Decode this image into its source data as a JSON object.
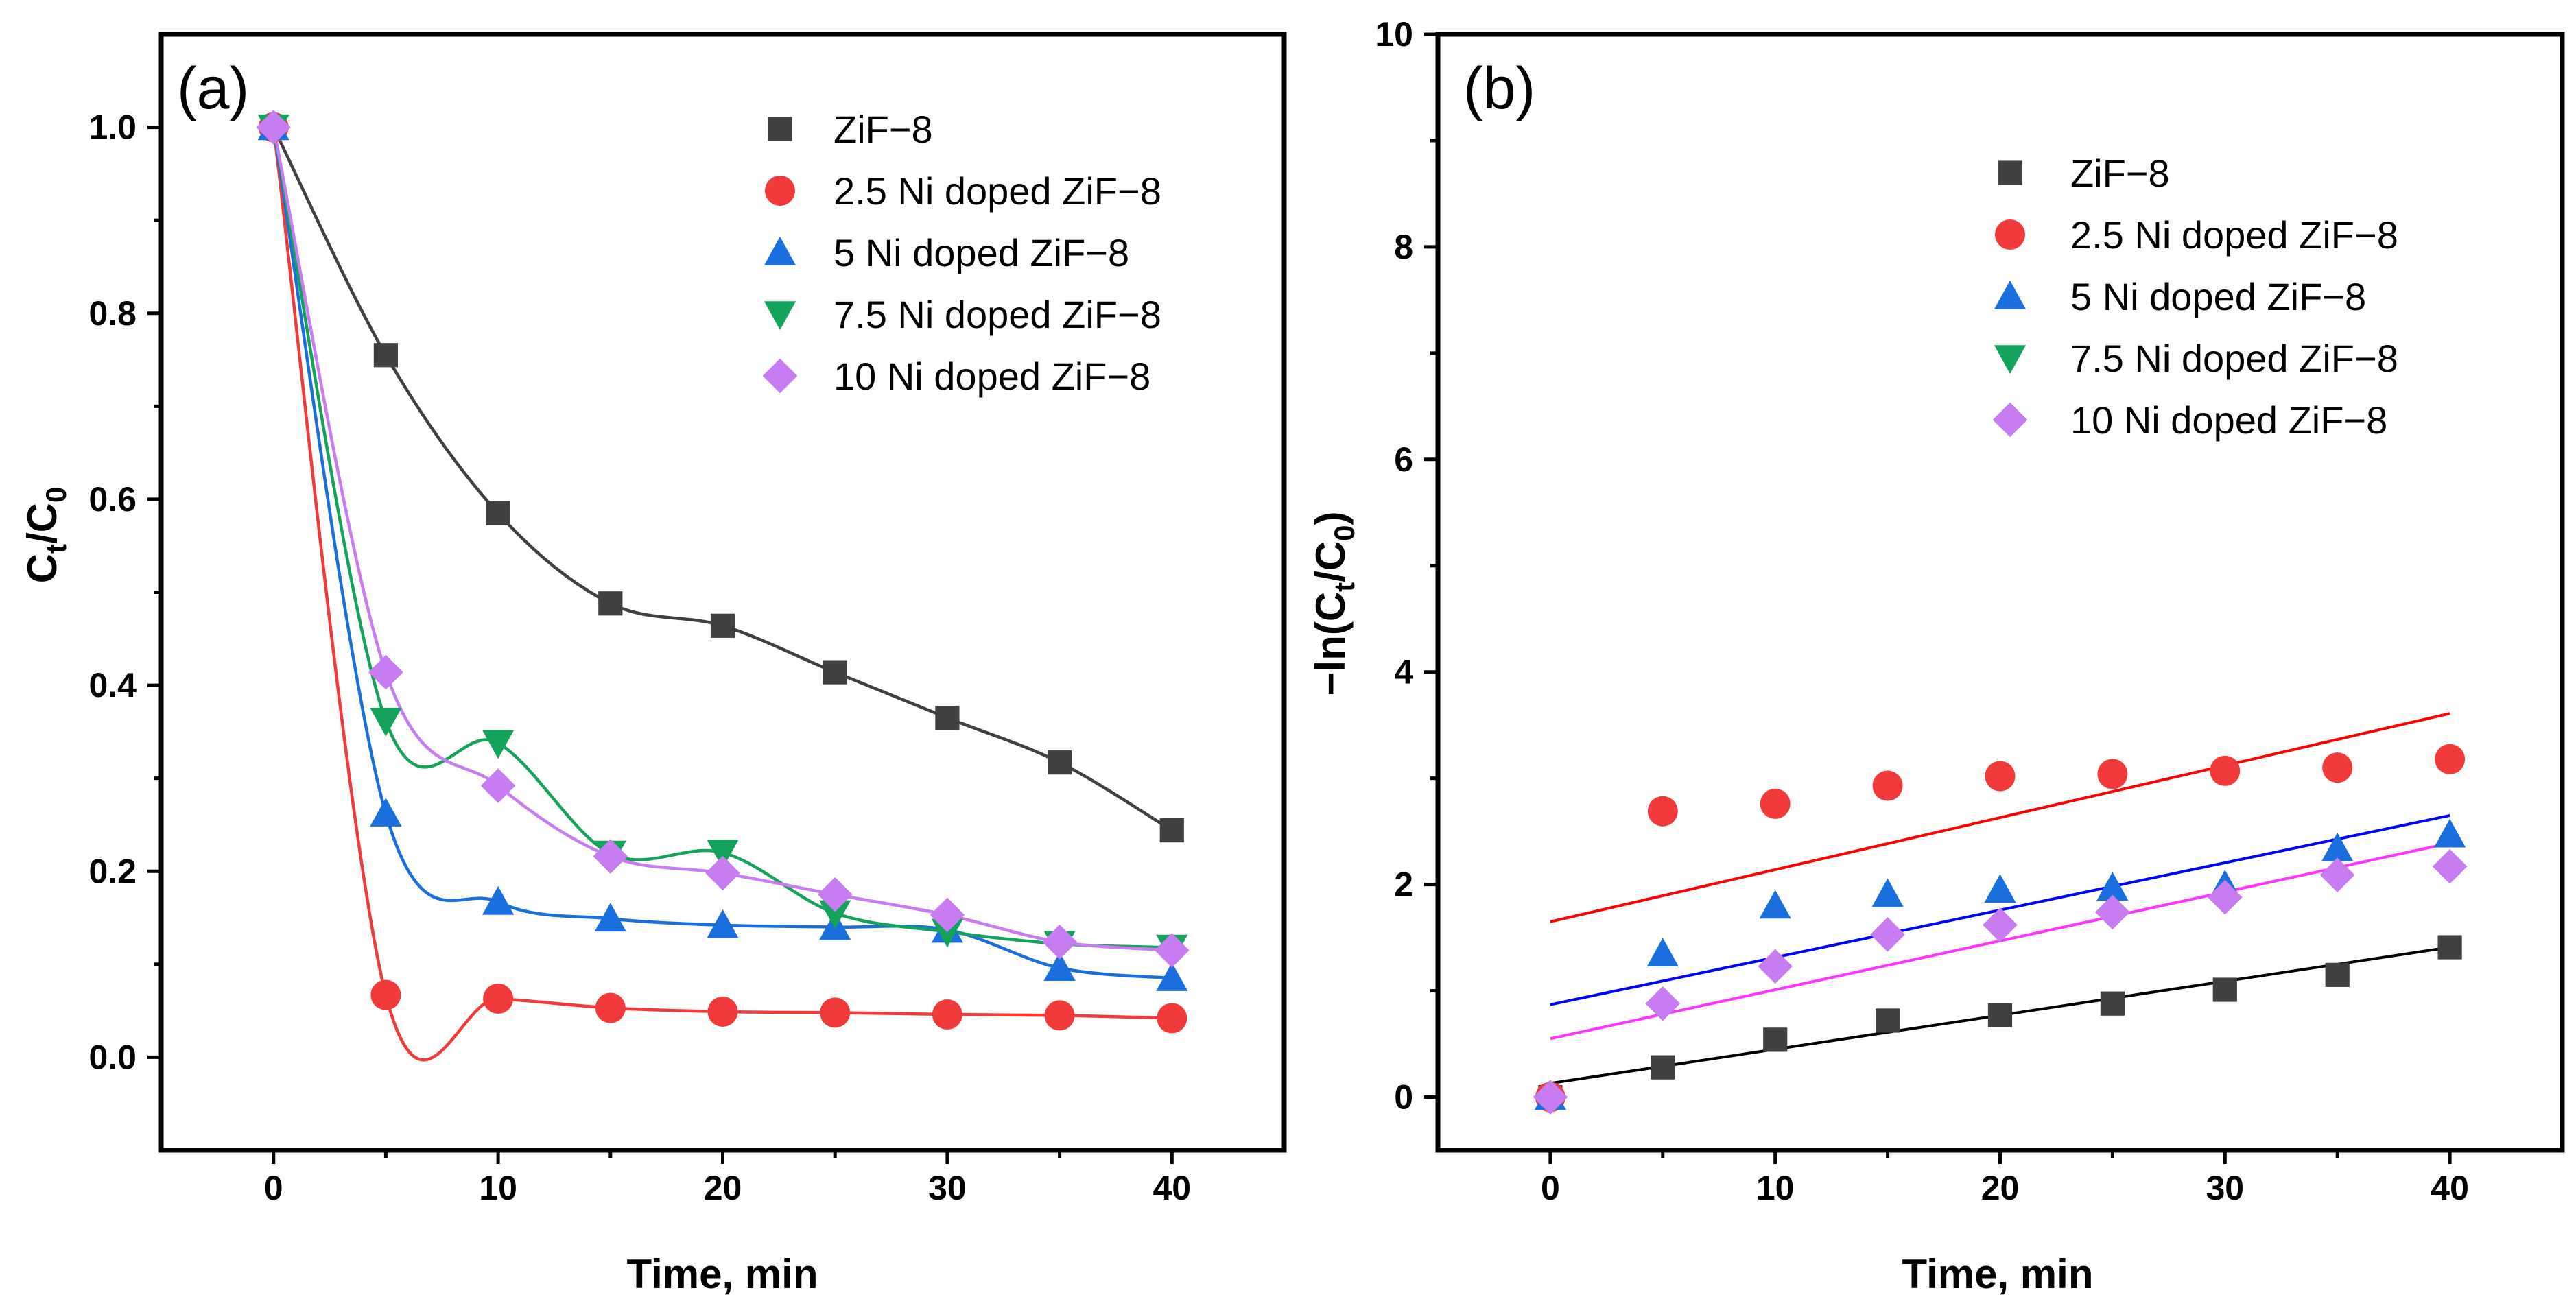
{
  "series_meta": [
    {
      "name": "ZiF−8",
      "color": "#404040",
      "fit_color": "#000000",
      "marker": "square"
    },
    {
      "name": "2.5 Ni doped ZiF−8",
      "color": "#f23a3a",
      "fit_color": "#ff0000",
      "marker": "circle"
    },
    {
      "name": "5 Ni doped ZiF−8",
      "color": "#1a6fdf",
      "fit_color": "#0000ff",
      "marker": "triangle-up"
    },
    {
      "name": "7.5 Ni doped ZiF−8",
      "color": "#14a35a",
      "fit_color": "#14a35a",
      "marker": "triangle-down"
    },
    {
      "name": "10 Ni doped ZiF−8",
      "color": "#c77cf2",
      "fit_color": "#ff33ff",
      "marker": "diamond"
    }
  ],
  "chart_data": [
    {
      "type": "line",
      "panel_label": "(a)",
      "title": "",
      "xlabel": "Time, min",
      "ylabel_main": "C",
      "ylabel_sub1": "t",
      "ylabel_mid": "/C",
      "ylabel_sub2": "0",
      "xlim": [
        -5,
        45
      ],
      "ylim": [
        -0.1,
        1.1
      ],
      "xticks": [
        0,
        10,
        20,
        30,
        40
      ],
      "xtick_labels": [
        "0",
        "10",
        "20",
        "30",
        "40"
      ],
      "yticks": [
        0.0,
        0.2,
        0.4,
        0.6,
        0.8,
        1.0
      ],
      "ytick_labels": [
        "0.0",
        "0.2",
        "0.4",
        "0.6",
        "0.8",
        "1.0"
      ],
      "legend_position": "top-right",
      "grid": false,
      "x": [
        0,
        5,
        10,
        15,
        20,
        25,
        30,
        35,
        40
      ],
      "series": [
        {
          "name": "ZiF−8",
          "values": [
            1.0,
            0.755,
            0.585,
            0.488,
            0.464,
            0.414,
            0.365,
            0.317,
            0.244
          ]
        },
        {
          "name": "2.5 Ni doped ZiF−8",
          "values": [
            1.0,
            0.067,
            0.063,
            0.053,
            0.049,
            0.048,
            0.046,
            0.045,
            0.042
          ]
        },
        {
          "name": "5 Ni doped ZiF−8",
          "values": [
            1.0,
            0.262,
            0.167,
            0.149,
            0.142,
            0.14,
            0.137,
            0.096,
            0.085
          ]
        },
        {
          "name": "7.5 Ni doped ZiF−8",
          "values": [
            1.0,
            0.362,
            0.338,
            0.219,
            0.22,
            0.155,
            0.135,
            0.122,
            0.118
          ]
        },
        {
          "name": "10 Ni doped ZiF−8",
          "values": [
            1.0,
            0.414,
            0.292,
            0.216,
            0.198,
            0.175,
            0.153,
            0.124,
            0.115
          ]
        }
      ]
    },
    {
      "type": "scatter",
      "panel_label": "(b)",
      "title": "",
      "xlabel": "Time, min",
      "ylabel_main": "−ln(C",
      "ylabel_sub1": "t",
      "ylabel_mid": "/C",
      "ylabel_sub2": "0",
      "ylabel_end": ")",
      "xlim": [
        -5,
        45
      ],
      "ylim": [
        -0.5,
        10
      ],
      "xticks": [
        0,
        10,
        20,
        30,
        40
      ],
      "xtick_labels": [
        "0",
        "10",
        "20",
        "30",
        "40"
      ],
      "yticks": [
        0,
        2,
        4,
        6,
        8,
        10
      ],
      "ytick_labels": [
        "0",
        "2",
        "4",
        "6",
        "8",
        "10"
      ],
      "legend_position": "top-center",
      "grid": false,
      "x": [
        0,
        5,
        10,
        15,
        20,
        25,
        30,
        35,
        40
      ],
      "series": [
        {
          "name": "ZiF−8",
          "values": [
            0,
            0.28,
            0.54,
            0.72,
            0.77,
            0.88,
            1.01,
            1.15,
            1.41
          ],
          "fit": {
            "intercept": 0.13,
            "slope": 0.032
          }
        },
        {
          "name": "2.5 Ni doped ZiF−8",
          "values": [
            0,
            2.69,
            2.76,
            2.93,
            3.02,
            3.04,
            3.07,
            3.1,
            3.18
          ],
          "fit": {
            "intercept": 1.65,
            "slope": 0.049
          }
        },
        {
          "name": "5 Ni doped ZiF−8",
          "values": [
            0,
            1.35,
            1.8,
            1.91,
            1.95,
            1.97,
            1.99,
            2.34,
            2.47
          ],
          "fit": {
            "intercept": 0.87,
            "slope": 0.0445
          }
        },
        {
          "name": "7.5 Ni doped ZiF−8",
          "values": [],
          "fit": null
        },
        {
          "name": "10 Ni doped ZiF−8",
          "values": [
            0,
            0.88,
            1.23,
            1.53,
            1.62,
            1.74,
            1.88,
            2.09,
            2.17
          ],
          "fit": {
            "intercept": 0.55,
            "slope": 0.046
          }
        }
      ]
    }
  ]
}
